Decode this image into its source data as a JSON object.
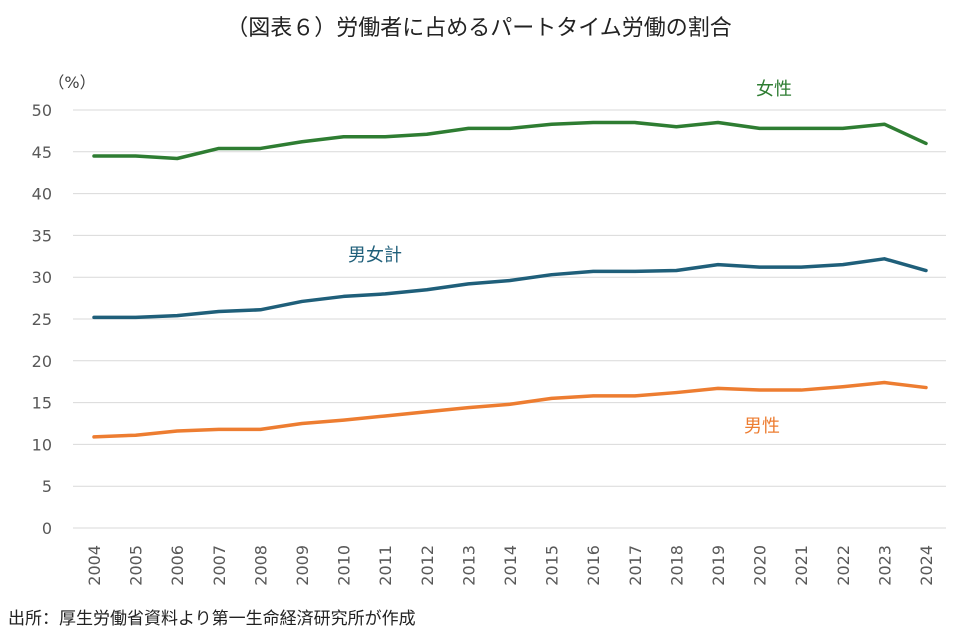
{
  "title": "（図表６）労働者に占めるパートタイム労働の割合",
  "source": "出所：厚生労働省資料より第一生命経済研究所が作成",
  "colors": {
    "female": "#2e7d32",
    "total": "#1f5f7a",
    "male": "#ed7d31",
    "grid": "#d9d9d9"
  },
  "chart_data": {
    "type": "line",
    "title": "（図表６）労働者に占めるパートタイム労働の割合",
    "ylabel": "（%）",
    "xlabel": "",
    "ylim": [
      0,
      50
    ],
    "yticks": [
      0,
      5,
      10,
      15,
      20,
      25,
      30,
      35,
      40,
      45,
      50
    ],
    "grid": true,
    "categories": [
      "2004",
      "2005",
      "2006",
      "2007",
      "2008",
      "2009",
      "2010",
      "2011",
      "2012",
      "2013",
      "2014",
      "2015",
      "2016",
      "2017",
      "2018",
      "2019",
      "2020",
      "2021",
      "2022",
      "2023",
      "2024"
    ],
    "series": [
      {
        "name": "女性",
        "color": "#2e7d32",
        "values": [
          44.5,
          44.5,
          44.2,
          45.4,
          45.4,
          46.2,
          46.8,
          46.8,
          47.1,
          47.8,
          47.8,
          48.3,
          48.5,
          48.5,
          48.0,
          48.5,
          47.8,
          47.8,
          47.8,
          48.3,
          46.0
        ]
      },
      {
        "name": "男女計",
        "color": "#1f5f7a",
        "values": [
          25.2,
          25.2,
          25.4,
          25.9,
          26.1,
          27.1,
          27.7,
          28.0,
          28.5,
          29.2,
          29.6,
          30.3,
          30.7,
          30.7,
          30.8,
          31.5,
          31.2,
          31.2,
          31.5,
          32.2,
          30.8
        ]
      },
      {
        "name": "男性",
        "color": "#ed7d31",
        "values": [
          10.9,
          11.1,
          11.6,
          11.8,
          11.8,
          12.5,
          12.9,
          13.4,
          13.9,
          14.4,
          14.8,
          15.5,
          15.8,
          15.8,
          16.2,
          16.7,
          16.5,
          16.5,
          16.9,
          17.4,
          16.8
        ]
      }
    ]
  }
}
